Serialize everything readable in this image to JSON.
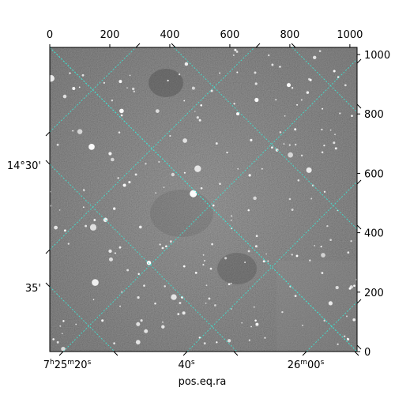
{
  "image": {
    "description": "astronomical starfield (grayscale) with WCS coordinate grid overlay",
    "grid_color": "#40e0d0",
    "background_color": "#808080"
  },
  "axes": {
    "top": {
      "ticks": [
        "0",
        "200",
        "400",
        "600",
        "800",
        "1000"
      ],
      "values": [
        0,
        200,
        400,
        600,
        800,
        1000
      ]
    },
    "right": {
      "ticks": [
        "0",
        "200",
        "400",
        "600",
        "800",
        "1000"
      ],
      "values": [
        0,
        200,
        400,
        600,
        800,
        1000
      ]
    },
    "left": {
      "ticks": [
        "14°30'",
        "35'"
      ]
    },
    "bottom": {
      "ticks": [
        "7h25m20s",
        "40s",
        "26m00s"
      ],
      "ticks_rich": [
        {
          "pre": "7",
          "sup1": "h",
          "mid": "25",
          "sup2": "m",
          "post": "20",
          "sup3": "s"
        },
        {
          "pre": "40",
          "sup1": "s"
        },
        {
          "pre": "26",
          "sup1": "m",
          "mid": "00",
          "sup2": "s"
        }
      ],
      "title": "pos.eq.ra"
    }
  }
}
